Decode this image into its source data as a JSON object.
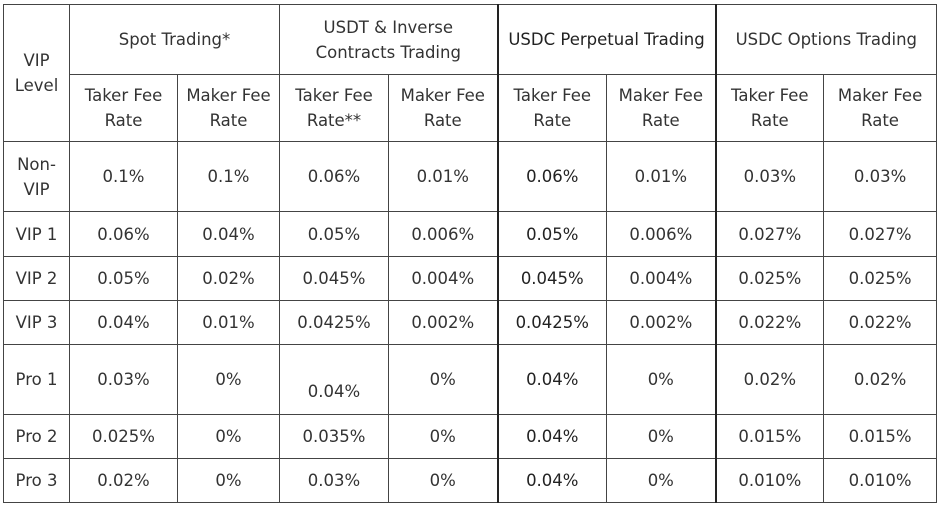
{
  "table": {
    "vip_level_header": "VIP\nLevel",
    "groups": [
      {
        "label": "Spot Trading*"
      },
      {
        "label": "USDT & Inverse\nContracts Trading"
      },
      {
        "label": "USDC Perpetual\nTrading"
      },
      {
        "label": "USDC Options Trading"
      }
    ],
    "sub_headers": [
      "Taker Fee\nRate",
      "Maker Fee\nRate",
      "Taker Fee\nRate**",
      "Maker Fee\nRate",
      "Taker Fee\nRate",
      "Maker Fee\nRate",
      "Taker Fee\nRate",
      "Maker Fee\nRate"
    ],
    "rows": [
      {
        "level": "Non-\nVIP",
        "values": [
          "0.1%",
          "0.1%",
          "0.06%",
          "0.01%",
          "0.06%",
          "0.01%",
          "0.03%",
          "0.03%"
        ]
      },
      {
        "level": "VIP 1",
        "values": [
          "0.06%",
          "0.04%",
          "0.05%",
          "0.006%",
          "0.05%",
          "0.006%",
          "0.027%",
          "0.027%"
        ]
      },
      {
        "level": "VIP 2",
        "values": [
          "0.05%",
          "0.02%",
          "0.045%",
          "0.004%",
          "0.045%",
          "0.004%",
          "0.025%",
          "0.025%"
        ]
      },
      {
        "level": "VIP 3",
        "values": [
          "0.04%",
          "0.01%",
          "0.0425%",
          "0.002%",
          "0.0425%",
          "0.002%",
          "0.022%",
          "0.022%"
        ]
      },
      {
        "level": "Pro 1",
        "values": [
          "0.03%",
          "0%",
          "0.04%",
          "0%",
          "0.04%",
          "0%",
          "0.02%",
          "0.02%"
        ]
      },
      {
        "level": "Pro 2",
        "values": [
          "0.025%",
          "0%",
          "0.035%",
          "0%",
          "0.04%",
          "0%",
          "0.015%",
          "0.015%"
        ]
      },
      {
        "level": "Pro 3",
        "values": [
          "0.02%",
          "0%",
          "0.03%",
          "0%",
          "0.04%",
          "0%",
          "0.010%",
          "0.010%"
        ]
      }
    ]
  }
}
